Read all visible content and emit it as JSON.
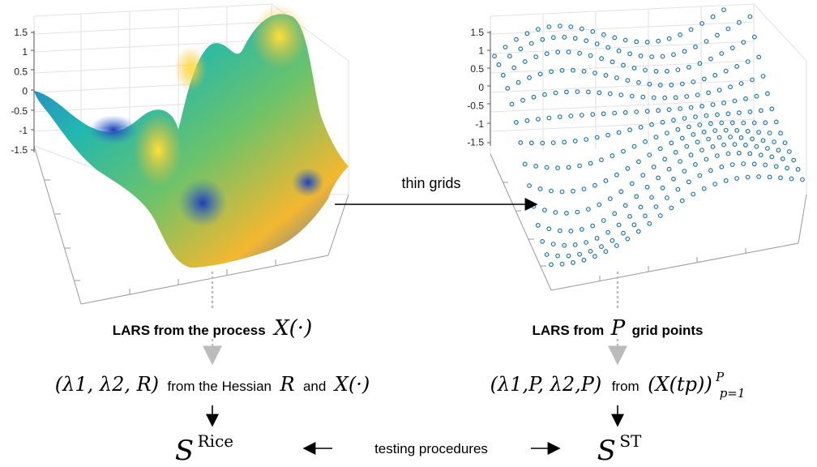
{
  "left_plot": {
    "z_ticks": [
      "1.5",
      "1",
      "0.5",
      "0",
      "-0.5",
      "-1",
      "-1.5"
    ]
  },
  "right_plot": {
    "z_ticks": [
      "1.5",
      "1",
      "0.5",
      "0",
      "-0.5",
      "-1",
      "-1.5"
    ]
  },
  "arrow_thin_grids": {
    "label": "thin grids"
  },
  "left_column": {
    "heading_text": "LARS from the process",
    "heading_math": "X(·)",
    "line_math": "(λ1, λ2, R)",
    "line_text_1": "from the Hessian",
    "line_math_R": "R",
    "line_text_2": "and",
    "line_math_X": "X(·)",
    "result_base": "S",
    "result_sup": "Rice"
  },
  "right_column": {
    "heading_text_1": "LARS from",
    "heading_math": "P",
    "heading_text_2": "grid points",
    "line_math": "(λ1,P, λ2,P)",
    "line_text": "from",
    "line_math_2": "(X(tp))",
    "line_math_2_sup": "P",
    "line_math_2_sub": "p=1",
    "result_base": "S",
    "result_sup": "ST"
  },
  "bottom_link": {
    "label": "testing procedures"
  },
  "colors": {
    "accent_marker": "#1f77b4",
    "arrow_gray": "#bbbbbb"
  }
}
